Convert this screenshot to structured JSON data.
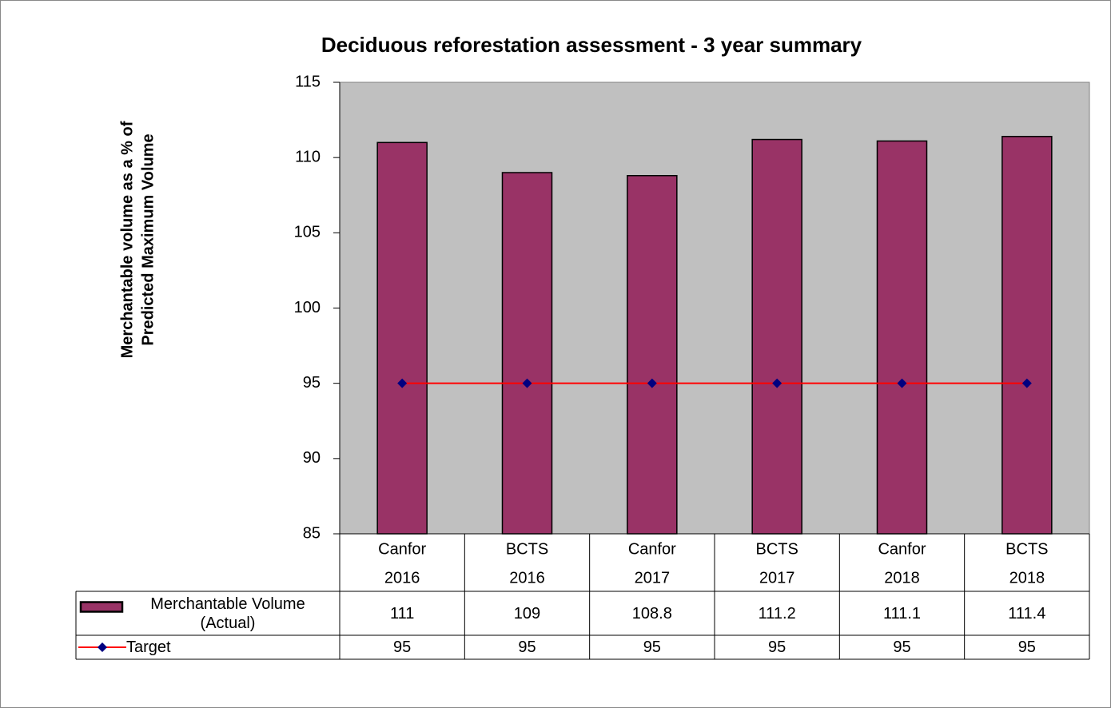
{
  "chart_data": {
    "type": "bar",
    "title": "Deciduous reforestation assessment - 3 year summary",
    "ylabel": [
      "Merchantable volume as a % of",
      "Predicted Maximum Volume"
    ],
    "categories": [
      [
        "Canfor",
        "2016"
      ],
      [
        "BCTS",
        "2016"
      ],
      [
        "Canfor",
        "2017"
      ],
      [
        "BCTS",
        "2017"
      ],
      [
        "Canfor",
        "2018"
      ],
      [
        "BCTS",
        "2018"
      ]
    ],
    "series": [
      {
        "name": "Merchantable Volume (Actual)",
        "type": "bar",
        "color": "#993366",
        "values": [
          111,
          109,
          108.8,
          111.2,
          111.1,
          111.4
        ]
      },
      {
        "name": "Target",
        "type": "line",
        "color": "#ff0000",
        "marker_color": "#000080",
        "values": [
          95,
          95,
          95,
          95,
          95,
          95
        ]
      }
    ],
    "ylim": [
      85,
      115
    ],
    "yticks": [
      85,
      90,
      95,
      100,
      105,
      110,
      115
    ],
    "plot_background": "#c0c0c0",
    "data_table": true
  }
}
